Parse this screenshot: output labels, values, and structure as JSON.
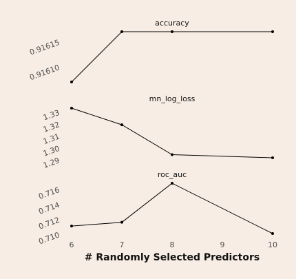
{
  "background_color": "#f8ede4",
  "chart_data": {
    "type": "line",
    "xlabel": "# Randomly Selected Predictors",
    "x_ticks": [
      6,
      7,
      8,
      9,
      10
    ],
    "x_tick_labels": [
      "6",
      "7",
      "8",
      "9",
      "10"
    ],
    "xlim": [
      6,
      10
    ],
    "panels": [
      {
        "title": "accuracy",
        "x": [
          6,
          7,
          8,
          10
        ],
        "y": [
          0.91607,
          0.91617,
          0.91617,
          0.91617
        ],
        "ylim": [
          0.91607,
          0.91617
        ],
        "y_ticks": [
          0.9161,
          0.91615
        ],
        "y_tick_labels": [
          "0.91610",
          "0.91615"
        ]
      },
      {
        "title": "mn_log_loss",
        "x": [
          6,
          7,
          8,
          10
        ],
        "y": [
          1.3332,
          1.3193,
          1.2943,
          1.2917
        ],
        "ylim": [
          1.2917,
          1.3332
        ],
        "y_ticks": [
          1.29,
          1.3,
          1.31,
          1.32,
          1.33
        ],
        "y_tick_labels": [
          "1.29",
          "1.30",
          "1.31",
          "1.32",
          "1.33"
        ]
      },
      {
        "title": "roc_auc",
        "x": [
          6,
          7,
          8,
          10
        ],
        "y": [
          0.7111,
          0.7116,
          0.7168,
          0.7101
        ],
        "ylim": [
          0.7101,
          0.7168
        ],
        "y_ticks": [
          0.71,
          0.712,
          0.714,
          0.716
        ],
        "y_tick_labels": [
          "0.710",
          "0.712",
          "0.714",
          "0.716"
        ]
      }
    ]
  }
}
